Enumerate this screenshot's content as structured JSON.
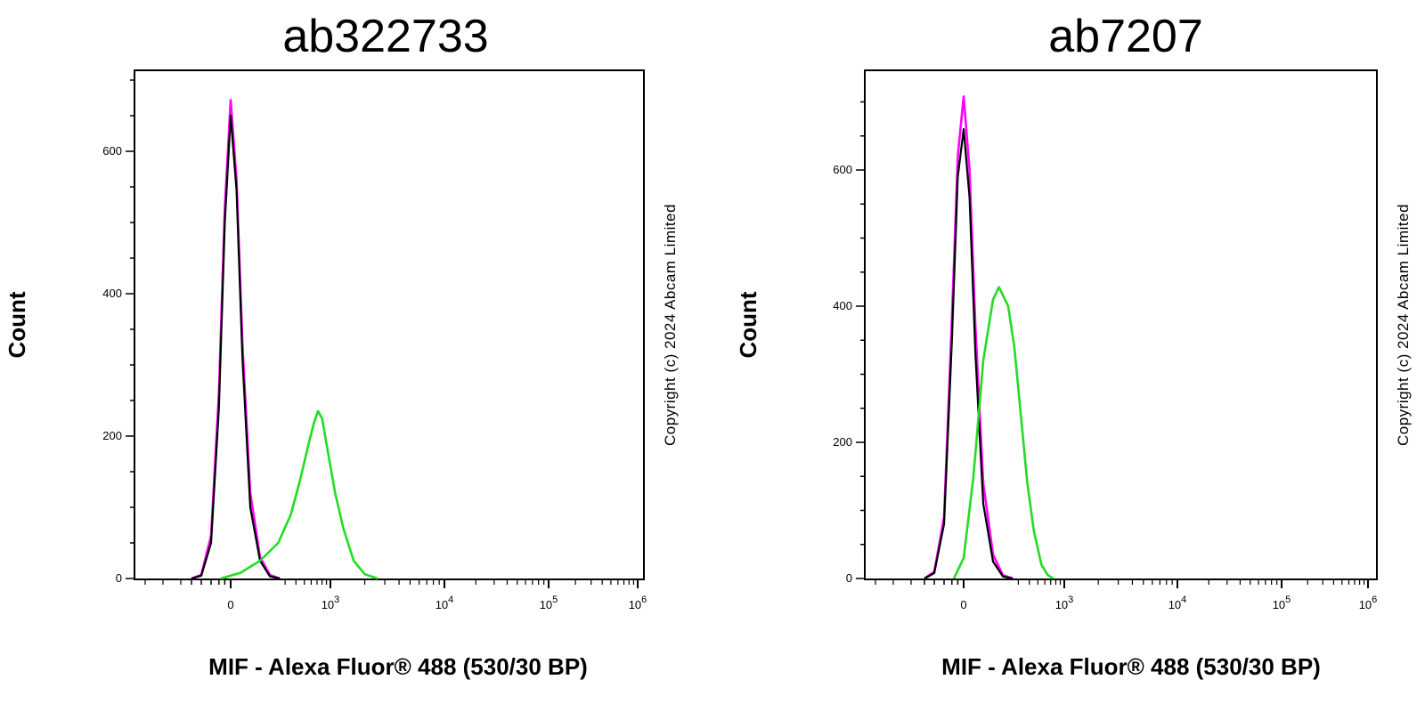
{
  "chart_data": [
    {
      "type": "line",
      "title": "ab322733",
      "xlabel": "MIF - Alexa Fluor® 488 (530/30 BP)",
      "ylabel": "Count",
      "copyright": "Copyright (c) 2024 Abcam Limited",
      "x_scale": "biexponential",
      "x_tick_labels": [
        "0",
        "10^3",
        "10^4",
        "10^5",
        "10^6"
      ],
      "y_ticks": [
        0,
        200,
        400,
        600
      ],
      "ylim": [
        0,
        720
      ],
      "grid": false,
      "series": [
        {
          "color": "#ff00ff",
          "points": [
            [
              -200,
              0
            ],
            [
              -150,
              5
            ],
            [
              -100,
              60
            ],
            [
              -60,
              260
            ],
            [
              -30,
              520
            ],
            [
              0,
              672
            ],
            [
              30,
              560
            ],
            [
              60,
              330
            ],
            [
              100,
              120
            ],
            [
              150,
              30
            ],
            [
              200,
              5
            ],
            [
              260,
              0
            ]
          ]
        },
        {
          "color": "#000000",
          "points": [
            [
              -200,
              0
            ],
            [
              -150,
              4
            ],
            [
              -100,
              50
            ],
            [
              -60,
              240
            ],
            [
              -30,
              500
            ],
            [
              0,
              650
            ],
            [
              30,
              545
            ],
            [
              60,
              310
            ],
            [
              100,
              100
            ],
            [
              150,
              25
            ],
            [
              200,
              3
            ],
            [
              260,
              0
            ]
          ]
        },
        {
          "color": "#22dd22",
          "points": [
            [
              -50,
              0
            ],
            [
              50,
              8
            ],
            [
              150,
              25
            ],
            [
              250,
              50
            ],
            [
              350,
              90
            ],
            [
              450,
              140
            ],
            [
              550,
              185
            ],
            [
              650,
              220
            ],
            [
              720,
              235
            ],
            [
              800,
              225
            ],
            [
              900,
              190
            ],
            [
              1100,
              120
            ],
            [
              1300,
              70
            ],
            [
              1600,
              25
            ],
            [
              2000,
              6
            ],
            [
              2600,
              0
            ]
          ]
        }
      ]
    },
    {
      "type": "line",
      "title": "ab7207",
      "xlabel": "MIF - Alexa Fluor® 488 (530/30 BP)",
      "ylabel": "Count",
      "copyright": "Copyright (c) 2024 Abcam Limited",
      "x_scale": "biexponential",
      "x_tick_labels": [
        "0",
        "10^3",
        "10^4",
        "10^5",
        "10^6"
      ],
      "y_ticks": [
        0,
        200,
        400,
        600
      ],
      "ylim": [
        0,
        720
      ],
      "grid": false,
      "series": [
        {
          "color": "#ff00ff",
          "points": [
            [
              -200,
              0
            ],
            [
              -150,
              10
            ],
            [
              -100,
              90
            ],
            [
              -60,
              380
            ],
            [
              -30,
              620
            ],
            [
              0,
              708
            ],
            [
              30,
              600
            ],
            [
              60,
              370
            ],
            [
              100,
              140
            ],
            [
              150,
              35
            ],
            [
              200,
              5
            ],
            [
              260,
              0
            ]
          ]
        },
        {
          "color": "#000000",
          "points": [
            [
              -200,
              0
            ],
            [
              -150,
              8
            ],
            [
              -100,
              80
            ],
            [
              -60,
              350
            ],
            [
              -30,
              590
            ],
            [
              0,
              660
            ],
            [
              30,
              560
            ],
            [
              60,
              330
            ],
            [
              100,
              110
            ],
            [
              150,
              25
            ],
            [
              200,
              3
            ],
            [
              260,
              0
            ]
          ]
        },
        {
          "color": "#22dd22",
          "points": [
            [
              -50,
              0
            ],
            [
              0,
              30
            ],
            [
              50,
              150
            ],
            [
              100,
              320
            ],
            [
              150,
              410
            ],
            [
              180,
              428
            ],
            [
              230,
              400
            ],
            [
              270,
              340
            ],
            [
              320,
              240
            ],
            [
              380,
              140
            ],
            [
              450,
              70
            ],
            [
              550,
              20
            ],
            [
              650,
              5
            ],
            [
              750,
              0
            ]
          ]
        }
      ]
    }
  ]
}
